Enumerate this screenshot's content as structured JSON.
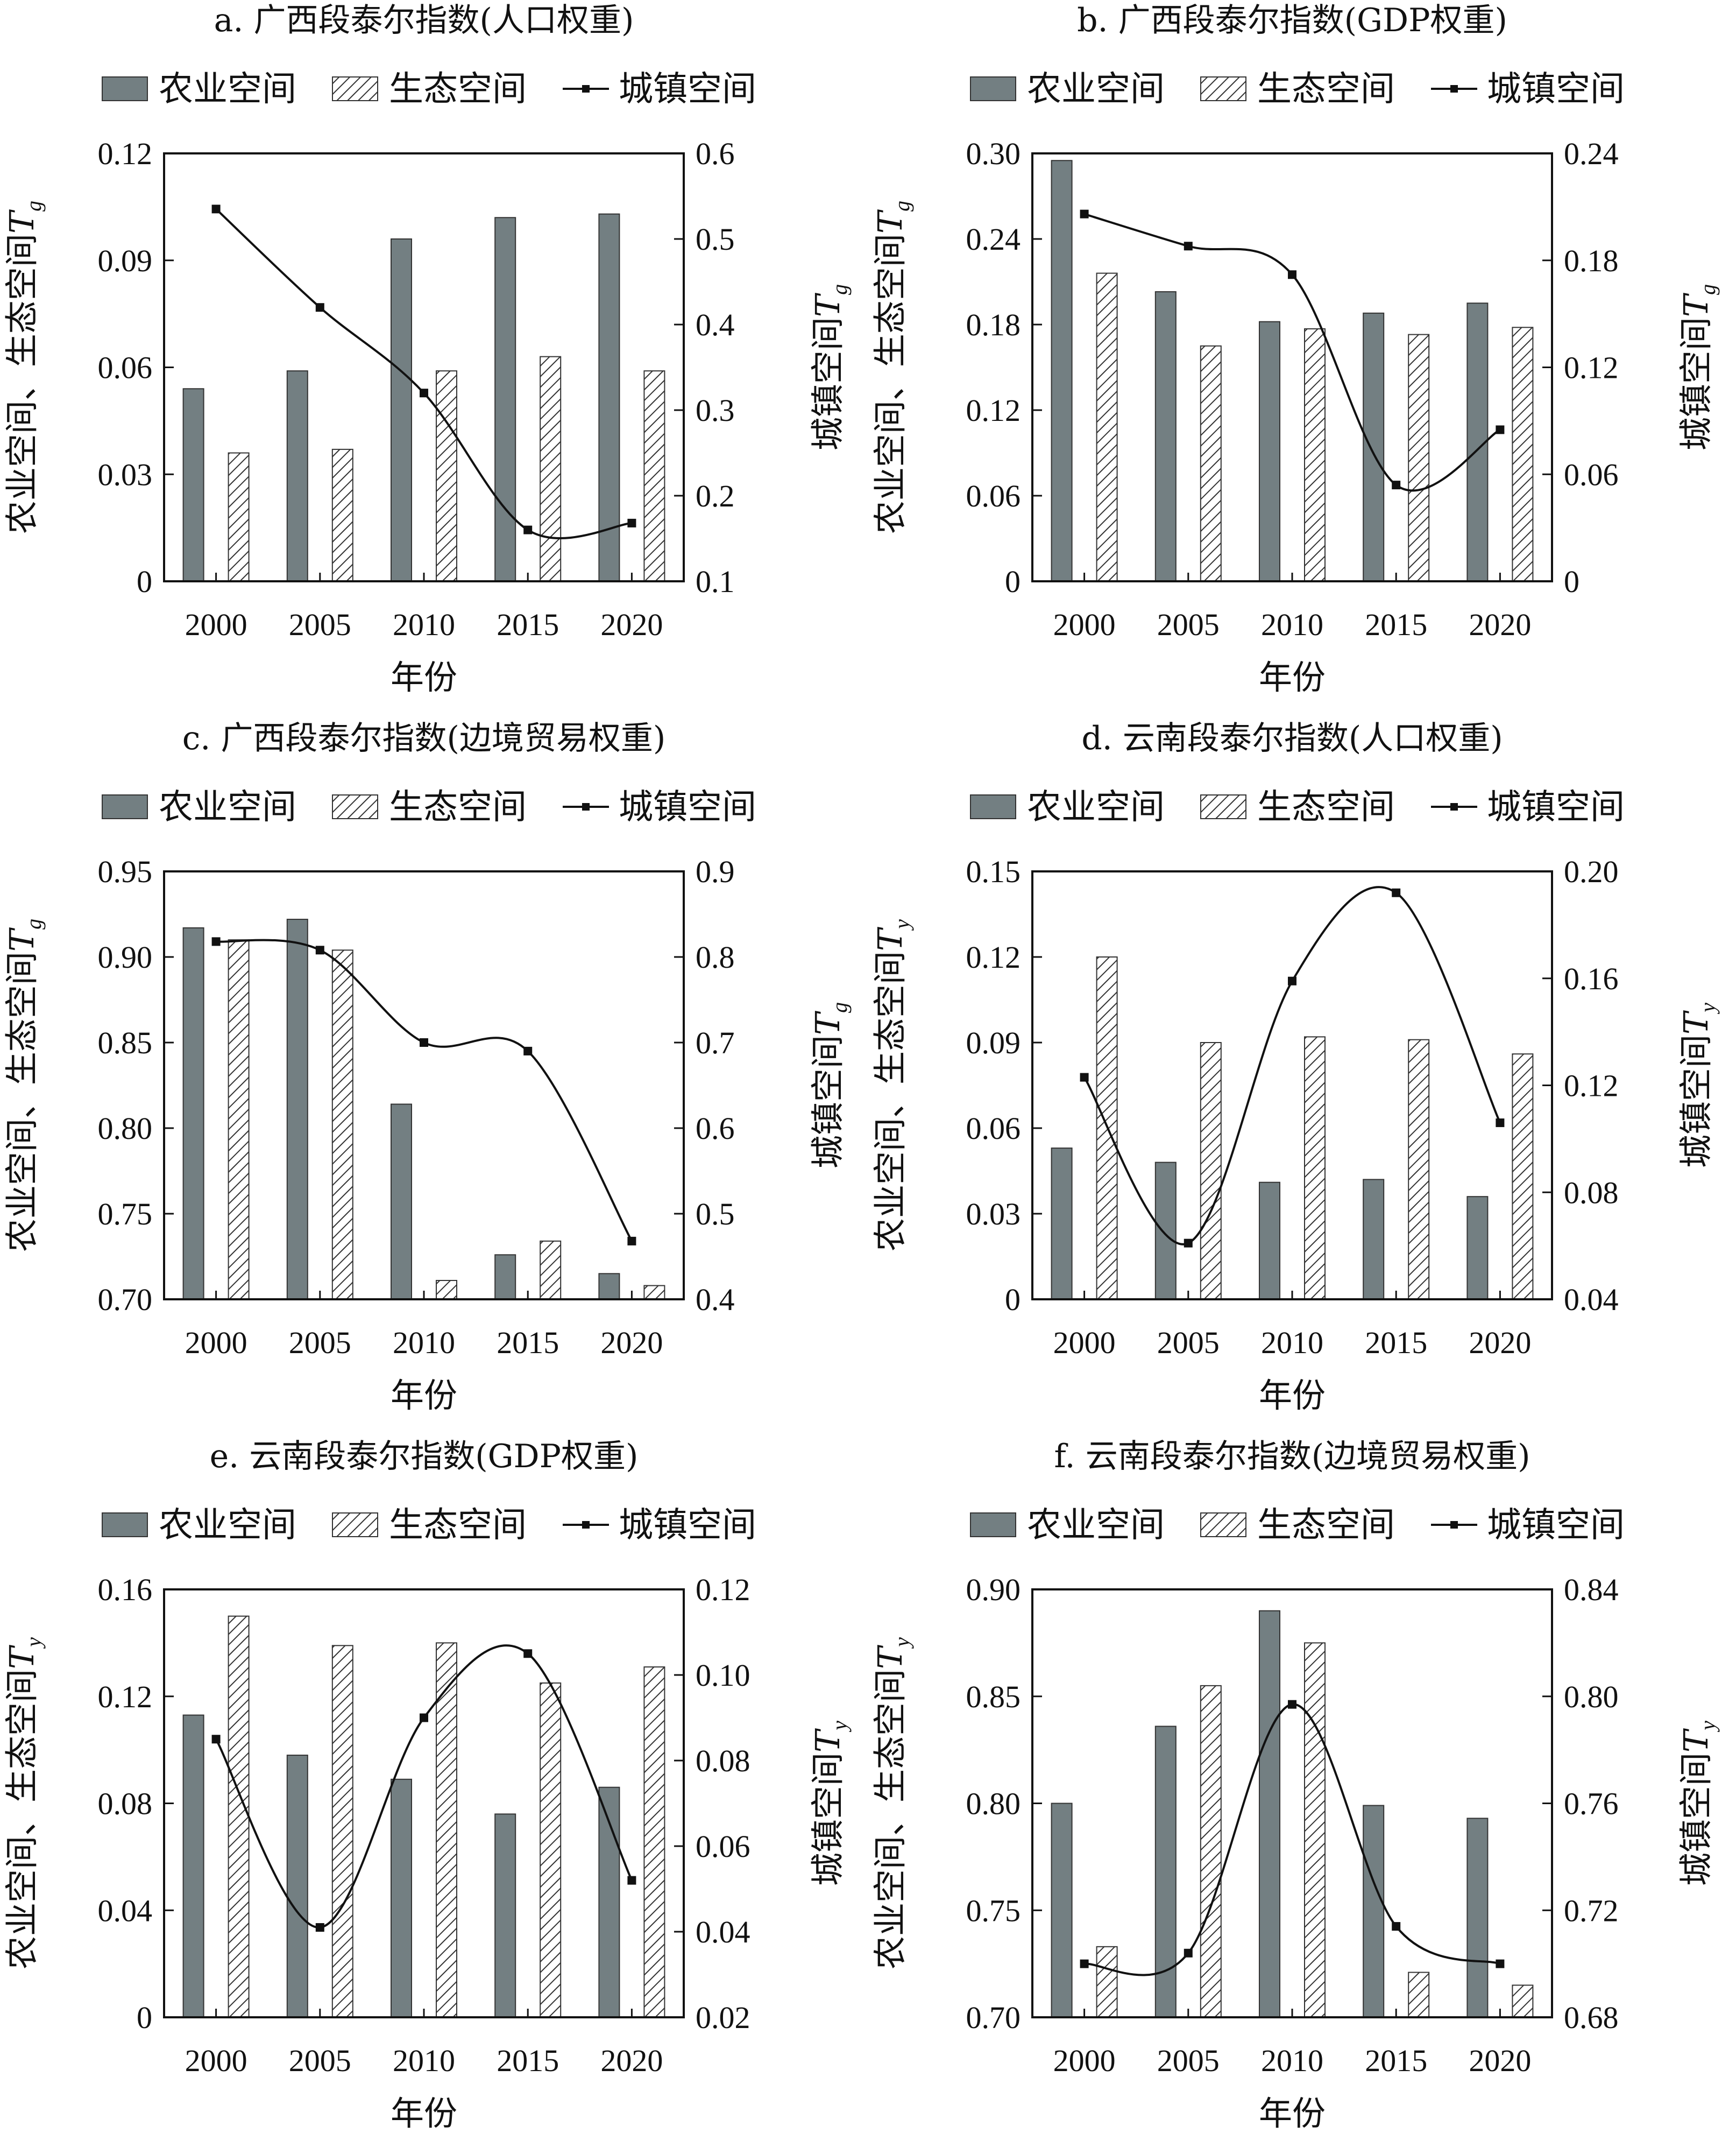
{
  "legend_labels": {
    "agri": "农业空间",
    "eco": "生态空间",
    "urban": "城镇空间"
  },
  "xlabel": "年份",
  "colors": {
    "agri": "#737f82",
    "eco_hatch": "#333333",
    "line": "#111111",
    "axis": "#111111"
  },
  "chart_data": [
    {
      "type": "bar",
      "title": "a. 广西段泰尔指数(人口权重)",
      "categories": [
        "2000",
        "2005",
        "2010",
        "2015",
        "2020"
      ],
      "ylabel_left": {
        "text": "农业空间、生态空间",
        "var": "T",
        "sub": "g"
      },
      "ylabel_right": {
        "text": "城镇空间",
        "var": "T",
        "sub": "g"
      },
      "ylim_left": [
        0,
        0.12
      ],
      "yticks_left": [
        "0",
        "0.03",
        "0.06",
        "0.09",
        "0.12"
      ],
      "ylim_right": [
        0.1,
        0.6
      ],
      "yticks_right": [
        "0.1",
        "0.2",
        "0.3",
        "0.4",
        "0.5",
        "0.6"
      ],
      "series": [
        {
          "name": "农业空间",
          "type": "bar",
          "axis": "left",
          "values": [
            0.054,
            0.059,
            0.096,
            0.102,
            0.103
          ]
        },
        {
          "name": "生态空间",
          "type": "bar",
          "axis": "left",
          "values": [
            0.036,
            0.037,
            0.059,
            0.063,
            0.059
          ]
        },
        {
          "name": "城镇空间",
          "type": "line",
          "axis": "right",
          "values": [
            0.535,
            0.42,
            0.32,
            0.16,
            0.168
          ]
        }
      ]
    },
    {
      "type": "bar",
      "title": "b. 广西段泰尔指数(GDP权重)",
      "categories": [
        "2000",
        "2005",
        "2010",
        "2015",
        "2020"
      ],
      "ylabel_left": {
        "text": "农业空间、生态空间",
        "var": "T",
        "sub": "g"
      },
      "ylabel_right": {
        "text": "城镇空间",
        "var": "T",
        "sub": "g"
      },
      "ylim_left": [
        0,
        0.3
      ],
      "yticks_left": [
        "0",
        "0.06",
        "0.12",
        "0.18",
        "0.24",
        "0.30"
      ],
      "ylim_right": [
        0,
        0.24
      ],
      "yticks_right": [
        "0",
        "0.06",
        "0.12",
        "0.18",
        "0.24"
      ],
      "series": [
        {
          "name": "农业空间",
          "type": "bar",
          "axis": "left",
          "values": [
            0.295,
            0.203,
            0.182,
            0.188,
            0.195
          ]
        },
        {
          "name": "生态空间",
          "type": "bar",
          "axis": "left",
          "values": [
            0.216,
            0.165,
            0.177,
            0.173,
            0.178
          ]
        },
        {
          "name": "城镇空间",
          "type": "line",
          "axis": "right",
          "values": [
            0.206,
            0.188,
            0.172,
            0.054,
            0.085
          ]
        }
      ]
    },
    {
      "type": "bar",
      "title": "c. 广西段泰尔指数(边境贸易权重)",
      "categories": [
        "2000",
        "2005",
        "2010",
        "2015",
        "2020"
      ],
      "ylabel_left": {
        "text": "农业空间、生态空间",
        "var": "T",
        "sub": "g"
      },
      "ylabel_right": {
        "text": "城镇空间",
        "var": "T",
        "sub": "g"
      },
      "ylim_left": [
        0.7,
        0.95
      ],
      "yticks_left": [
        "0.70",
        "0.75",
        "0.80",
        "0.85",
        "0.90",
        "0.95"
      ],
      "ylim_right": [
        0.4,
        0.9
      ],
      "yticks_right": [
        "0.4",
        "0.5",
        "0.6",
        "0.7",
        "0.8",
        "0.9"
      ],
      "series": [
        {
          "name": "农业空间",
          "type": "bar",
          "axis": "left",
          "values": [
            0.917,
            0.922,
            0.814,
            0.726,
            0.715
          ]
        },
        {
          "name": "生态空间",
          "type": "bar",
          "axis": "left",
          "values": [
            0.91,
            0.904,
            0.711,
            0.734,
            0.708
          ]
        },
        {
          "name": "城镇空间",
          "type": "line",
          "axis": "right",
          "values": [
            0.818,
            0.808,
            0.7,
            0.69,
            0.468
          ]
        }
      ]
    },
    {
      "type": "bar",
      "title": "d. 云南段泰尔指数(人口权重)",
      "categories": [
        "2000",
        "2005",
        "2010",
        "2015",
        "2020"
      ],
      "ylabel_left": {
        "text": "农业空间、生态空间",
        "var": "T",
        "sub": "y"
      },
      "ylabel_right": {
        "text": "城镇空间",
        "var": "T",
        "sub": "y"
      },
      "ylim_left": [
        0,
        0.15
      ],
      "yticks_left": [
        "0",
        "0.03",
        "0.06",
        "0.09",
        "0.12",
        "0.15"
      ],
      "ylim_right": [
        0.04,
        0.2
      ],
      "yticks_right": [
        "0.04",
        "0.08",
        "0.12",
        "0.16",
        "0.20"
      ],
      "series": [
        {
          "name": "农业空间",
          "type": "bar",
          "axis": "left",
          "values": [
            0.053,
            0.048,
            0.041,
            0.042,
            0.036
          ]
        },
        {
          "name": "生态空间",
          "type": "bar",
          "axis": "left",
          "values": [
            0.12,
            0.09,
            0.092,
            0.091,
            0.086
          ]
        },
        {
          "name": "城镇空间",
          "type": "line",
          "axis": "right",
          "values": [
            0.123,
            0.061,
            0.159,
            0.192,
            0.106
          ]
        }
      ]
    },
    {
      "type": "bar",
      "title": "e. 云南段泰尔指数(GDP权重)",
      "categories": [
        "2000",
        "2005",
        "2010",
        "2015",
        "2020"
      ],
      "ylabel_left": {
        "text": "农业空间、生态空间",
        "var": "T",
        "sub": "y"
      },
      "ylabel_right": {
        "text": "城镇空间",
        "var": "T",
        "sub": "y"
      },
      "ylim_left": [
        0,
        0.16
      ],
      "yticks_left": [
        "0",
        "0.04",
        "0.08",
        "0.12",
        "0.16"
      ],
      "ylim_right": [
        0.02,
        0.12
      ],
      "yticks_right": [
        "0.02",
        "0.04",
        "0.06",
        "0.08",
        "0.10",
        "0.12"
      ],
      "series": [
        {
          "name": "农业空间",
          "type": "bar",
          "axis": "left",
          "values": [
            0.113,
            0.098,
            0.089,
            0.076,
            0.086
          ]
        },
        {
          "name": "生态空间",
          "type": "bar",
          "axis": "left",
          "values": [
            0.15,
            0.139,
            0.14,
            0.125,
            0.131
          ]
        },
        {
          "name": "城镇空间",
          "type": "line",
          "axis": "right",
          "values": [
            0.085,
            0.041,
            0.09,
            0.105,
            0.052
          ]
        }
      ]
    },
    {
      "type": "bar",
      "title": "f. 云南段泰尔指数(边境贸易权重)",
      "categories": [
        "2000",
        "2005",
        "2010",
        "2015",
        "2020"
      ],
      "ylabel_left": {
        "text": "农业空间、生态空间",
        "var": "T",
        "sub": "y"
      },
      "ylabel_right": {
        "text": "城镇空间",
        "var": "T",
        "sub": "y"
      },
      "ylim_left": [
        0.7,
        0.9
      ],
      "yticks_left": [
        "0.70",
        "0.75",
        "0.80",
        "0.85",
        "0.90"
      ],
      "ylim_right": [
        0.68,
        0.84
      ],
      "yticks_right": [
        "0.68",
        "0.72",
        "0.76",
        "0.80",
        "0.84"
      ],
      "series": [
        {
          "name": "农业空间",
          "type": "bar",
          "axis": "left",
          "values": [
            0.8,
            0.836,
            0.89,
            0.799,
            0.793
          ]
        },
        {
          "name": "生态空间",
          "type": "bar",
          "axis": "left",
          "values": [
            0.733,
            0.855,
            0.875,
            0.721,
            0.715
          ]
        },
        {
          "name": "城镇空间",
          "type": "line",
          "axis": "right",
          "values": [
            0.7,
            0.704,
            0.797,
            0.714,
            0.7
          ]
        }
      ]
    }
  ]
}
